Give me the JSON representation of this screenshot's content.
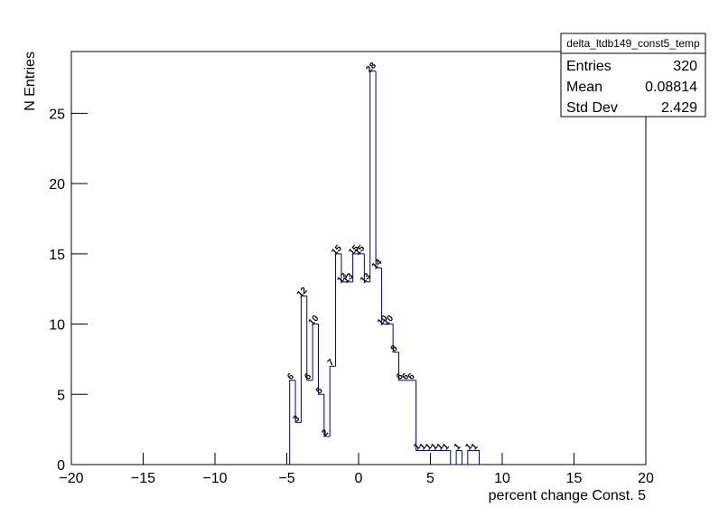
{
  "chart_data": {
    "type": "histogram",
    "x_label": "percent change Const. 5",
    "y_label": "N Entries",
    "bins": [
      -4.8,
      -4.4,
      -4,
      -3.6,
      -3.2,
      -2.8,
      -2.4,
      -2,
      -1.6,
      -1.2,
      -0.8,
      -0.4,
      0,
      0.4,
      0.8,
      1.2,
      1.6,
      2,
      2.4,
      2.8,
      3.2,
      3.6,
      4,
      4.4,
      4.8,
      5.2,
      5.6,
      6,
      6.4,
      6.8,
      7.2,
      7.6,
      8,
      8.4
    ],
    "values": [
      6,
      3,
      12,
      6,
      10,
      5,
      2,
      7,
      15,
      13,
      13,
      15,
      15,
      13,
      28,
      14,
      10,
      10,
      8,
      6,
      6,
      6,
      1,
      1,
      1,
      1,
      1,
      1,
      0,
      1,
      0,
      1,
      1
    ],
    "color": "#000080",
    "xlim": [
      -20,
      20
    ],
    "xticks": [
      {
        "value": -20,
        "label": "−20"
      },
      {
        "value": -15,
        "label": "−15"
      },
      {
        "value": -10,
        "label": "−10"
      },
      {
        "value": -5,
        "label": "−5"
      },
      0,
      5,
      10,
      15,
      20
    ],
    "ylim": [
      0,
      29.4
    ],
    "yticks": [
      0,
      5,
      10,
      15,
      20,
      25
    ],
    "stats": {
      "title": "delta_ltdb149_const5_temp",
      "rows": [
        [
          "Entries",
          320
        ],
        [
          "Mean",
          0.08814
        ],
        [
          "Std Dev",
          2.429
        ]
      ]
    }
  }
}
